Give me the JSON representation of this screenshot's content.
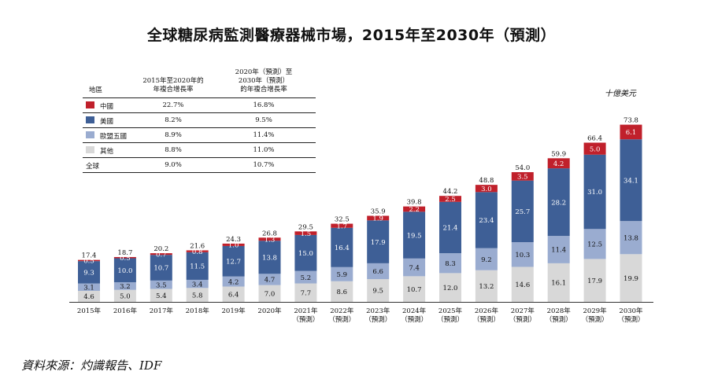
{
  "title": "全球糖尿病監測醫療器械市場，2015年至2030年（預測）",
  "unit": "十億美元",
  "source": "資料來源：灼識報告、IDF",
  "colors": {
    "china": "#c0202b",
    "usa": "#3e5f96",
    "eu5": "#9aacd0",
    "other": "#d8d8d8"
  },
  "table": {
    "headers": [
      "地區",
      "2015年至2020年的\n年複合增長率",
      "2020年（預測）至\n2030年（預測）\n的年複合增長率"
    ],
    "rows": [
      {
        "name": "中國",
        "cagr1": "22.7%",
        "cagr2": "16.8%",
        "color": "#c0202b"
      },
      {
        "name": "美國",
        "cagr1": "8.2%",
        "cagr2": "9.5%",
        "color": "#3e5f96"
      },
      {
        "name": "歐盟五國",
        "cagr1": "8.9%",
        "cagr2": "11.4%",
        "color": "#9aacd0"
      },
      {
        "name": "其他",
        "cagr1": "8.8%",
        "cagr2": "11.0%",
        "color": "#d8d8d8"
      },
      {
        "name": "全球",
        "cagr1": "9.0%",
        "cagr2": "10.7%",
        "color": ""
      }
    ]
  },
  "chart_data": {
    "type": "bar",
    "stacked": true,
    "categories": [
      "2015年",
      "2016年",
      "2017年",
      "2018年",
      "2019年",
      "2020年",
      "2021年\n（預測）",
      "2022年\n（預測）",
      "2023年\n（預測）",
      "2024年\n（預測）",
      "2025年\n（預測）",
      "2026年\n（預測）",
      "2027年\n（預測）",
      "2028年\n（預測）",
      "2029年\n（預測）",
      "2030年\n（預測）"
    ],
    "series": [
      {
        "name": "其他",
        "values": [
          4.6,
          5.0,
          5.4,
          5.8,
          6.4,
          7.0,
          7.7,
          8.6,
          9.5,
          10.7,
          12.0,
          13.2,
          14.6,
          16.1,
          17.9,
          19.9
        ]
      },
      {
        "name": "歐盟五國",
        "values": [
          3.1,
          3.2,
          3.5,
          3.4,
          4.2,
          4.7,
          5.2,
          5.9,
          6.6,
          7.4,
          8.3,
          9.2,
          10.3,
          11.4,
          12.5,
          13.8
        ]
      },
      {
        "name": "美國",
        "values": [
          9.3,
          10.0,
          10.7,
          11.5,
          12.7,
          13.8,
          15.0,
          16.4,
          17.9,
          19.5,
          21.4,
          23.4,
          25.7,
          28.2,
          31.0,
          34.1
        ]
      },
      {
        "name": "中國",
        "values": [
          0.5,
          0.5,
          0.7,
          0.8,
          1.0,
          1.3,
          1.5,
          1.7,
          1.9,
          2.2,
          2.5,
          3.0,
          3.5,
          4.2,
          5.0,
          6.1
        ]
      }
    ],
    "totals": [
      "17.4",
      "18.7",
      "20.2",
      "21.6",
      "24.3",
      "26.8",
      "29.5",
      "32.5",
      "35.9",
      "39.8",
      "44.2",
      "48.8",
      "54.0",
      "59.9",
      "66.4",
      "73.8"
    ],
    "ylim": [
      0,
      75
    ]
  }
}
